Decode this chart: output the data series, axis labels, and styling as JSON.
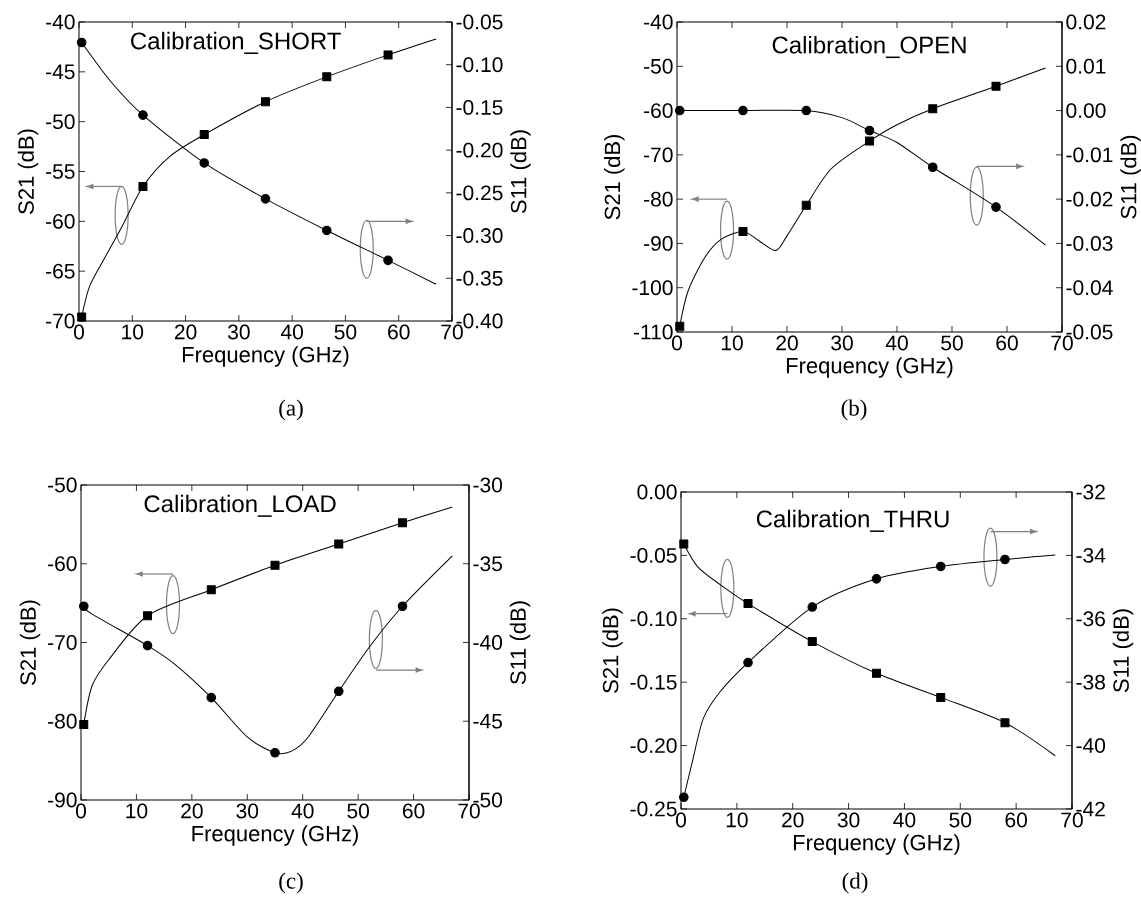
{
  "chart_data": [
    {
      "type": "line",
      "title": "Calibration_SHORT",
      "xlabel": "Frequency (GHz)",
      "ylabel": "S21 (dB)",
      "y2label": "S11 (dB)",
      "annotations": [
        "(a)"
      ],
      "xlim": [
        0,
        70
      ],
      "xticks": [
        0,
        10,
        20,
        30,
        40,
        50,
        60,
        70
      ],
      "ylim": [
        -70,
        -40
      ],
      "yticks": [
        -70,
        -65,
        -60,
        -55,
        -50,
        -45,
        -40
      ],
      "y2lim": [
        -0.4,
        -0.05
      ],
      "y2ticks": [
        {
          "value": -0.4,
          "label": "-0.40"
        },
        {
          "value": -0.35,
          "label": "-0.35"
        },
        {
          "value": -0.3,
          "label": "-0.30"
        },
        {
          "value": -0.25,
          "label": "-0.25"
        },
        {
          "value": -0.2,
          "label": "-0.20"
        },
        {
          "value": -0.15,
          "label": "-0.15"
        },
        {
          "value": -0.1,
          "label": "-0.10"
        },
        {
          "value": -0.05,
          "label": "-0.05"
        }
      ],
      "series": [
        {
          "color": "#000000",
          "marker": "none",
          "x": [
            0.5,
            2,
            5,
            8,
            12,
            17,
            23.5,
            35,
            46.5,
            58,
            67
          ],
          "values": [
            -69.6,
            -66.5,
            -63.5,
            -60.6,
            -56.5,
            -53.5,
            -51.3,
            -48.0,
            -45.5,
            -43.3,
            -41.7
          ]
        },
        {
          "type": "scatter",
          "color": "#000000",
          "marker": "square",
          "x": [
            0.5,
            12,
            23.5,
            35,
            46.5,
            58
          ],
          "values": [
            -69.6,
            -56.5,
            -51.3,
            -48.0,
            -45.5,
            -43.3
          ]
        },
        {
          "axis": "y2",
          "color": "#000000",
          "marker": "none",
          "x": [
            0.5,
            6,
            12,
            23.5,
            35,
            46.5,
            58,
            67
          ],
          "values": [
            -0.074,
            -0.12,
            -0.159,
            -0.215,
            -0.257,
            -0.294,
            -0.329,
            -0.357
          ]
        },
        {
          "type": "scatter",
          "axis": "y2",
          "color": "#000000",
          "marker": "circle",
          "x": [
            0.5,
            12,
            23.5,
            35,
            46.5,
            58
          ],
          "values": [
            -0.074,
            -0.159,
            -0.215,
            -0.257,
            -0.294,
            -0.329
          ]
        }
      ]
    },
    {
      "type": "line",
      "title": "Calibration_OPEN",
      "xlabel": "Frequency (GHz)",
      "ylabel": "S21 (dB)",
      "y2label": "S11 (dB)",
      "annotations": [
        "(b)"
      ],
      "xlim": [
        0,
        70
      ],
      "xticks": [
        0,
        10,
        20,
        30,
        40,
        50,
        60,
        70
      ],
      "ylim": [
        -110,
        -40
      ],
      "yticks": [
        -110,
        -100,
        -90,
        -80,
        -70,
        -60,
        -50,
        -40
      ],
      "y2lim": [
        -0.05,
        0.02
      ],
      "y2ticks": [
        {
          "value": -0.05,
          "label": "-0.05"
        },
        {
          "value": -0.04,
          "label": "-0.04"
        },
        {
          "value": -0.03,
          "label": "-0.03"
        },
        {
          "value": -0.02,
          "label": "-0.02"
        },
        {
          "value": -0.01,
          "label": "-0.01"
        },
        {
          "value": 0,
          "label": "0.00"
        },
        {
          "value": 0.01,
          "label": "0.01"
        },
        {
          "value": 0.02,
          "label": "0.02"
        }
      ],
      "series": [
        {
          "color": "#000000",
          "marker": "none",
          "x": [
            0.5,
            2,
            5,
            8,
            12,
            15,
            18,
            20,
            23.5,
            28,
            35,
            40,
            46.5,
            58,
            67
          ],
          "values": [
            -108.7,
            -100.8,
            -93.3,
            -89.1,
            -87.3,
            -89.5,
            -91.6,
            -88.3,
            -81.4,
            -73.2,
            -66.9,
            -63.2,
            -59.6,
            -54.5,
            -50.4
          ]
        },
        {
          "type": "scatter",
          "color": "#000000",
          "marker": "square",
          "x": [
            0.5,
            12,
            23.5,
            35,
            46.5,
            58
          ],
          "values": [
            -108.7,
            -87.3,
            -81.4,
            -66.9,
            -59.6,
            -54.5
          ]
        },
        {
          "axis": "y2",
          "color": "#000000",
          "marker": "none",
          "x": [
            0.5,
            12,
            23.5,
            30,
            35,
            40,
            46.5,
            58,
            67
          ],
          "values": [
            0.0,
            0.0,
            0.0,
            -0.0016,
            -0.0045,
            -0.0072,
            -0.0128,
            -0.0218,
            -0.0304
          ]
        },
        {
          "type": "scatter",
          "axis": "y2",
          "color": "#000000",
          "marker": "circle",
          "x": [
            0.5,
            12,
            23.5,
            35,
            46.5,
            58
          ],
          "values": [
            0.0,
            0.0,
            0.0,
            -0.0045,
            -0.0128,
            -0.0218
          ]
        }
      ]
    },
    {
      "type": "line",
      "title": "Calibration_LOAD",
      "xlabel": "Frequency (GHz)",
      "ylabel": "S21 (dB)",
      "y2label": "S11 (dB)",
      "annotations": [
        "(c)"
      ],
      "xlim": [
        0,
        70
      ],
      "xticks": [
        0,
        10,
        20,
        30,
        40,
        50,
        60,
        70
      ],
      "ylim": [
        -90,
        -50
      ],
      "yticks": [
        -90,
        -80,
        -70,
        -60,
        -50
      ],
      "y2lim": [
        -50,
        -30
      ],
      "y2ticks": [
        -50,
        -45,
        -40,
        -35,
        -30
      ],
      "series": [
        {
          "color": "#000000",
          "marker": "none",
          "x": [
            0.5,
            2,
            5,
            12,
            23.5,
            35,
            46.5,
            58,
            67
          ],
          "values": [
            -80.4,
            -75.5,
            -72.2,
            -66.6,
            -63.3,
            -60.2,
            -57.5,
            -54.8,
            -52.8
          ]
        },
        {
          "type": "scatter",
          "color": "#000000",
          "marker": "square",
          "x": [
            0.5,
            12,
            23.5,
            35,
            46.5,
            58
          ],
          "values": [
            -80.4,
            -66.6,
            -63.3,
            -60.2,
            -57.5,
            -54.8
          ]
        },
        {
          "axis": "y2",
          "color": "#000000",
          "marker": "none",
          "x": [
            0.5,
            2,
            12,
            17,
            23.5,
            30,
            35,
            38,
            41,
            46.5,
            52,
            58,
            67
          ],
          "values": [
            -37.7,
            -38.2,
            -40.2,
            -41.4,
            -43.5,
            -46.0,
            -47.0,
            -46.9,
            -46.0,
            -43.1,
            -40.3,
            -37.7,
            -34.5
          ]
        },
        {
          "type": "scatter",
          "axis": "y2",
          "color": "#000000",
          "marker": "circle",
          "x": [
            0.5,
            12,
            23.5,
            35,
            46.5,
            58
          ],
          "values": [
            -37.7,
            -40.2,
            -43.5,
            -47.0,
            -43.1,
            -37.7
          ]
        }
      ]
    },
    {
      "type": "line",
      "title": "Calibration_THRU",
      "xlabel": "Frequency (GHz)",
      "ylabel": "S21 (dB)",
      "y2label": "S11 (dB)",
      "annotations": [
        "(d)"
      ],
      "xlim": [
        0,
        70
      ],
      "xticks": [
        0,
        10,
        20,
        30,
        40,
        50,
        60,
        70
      ],
      "ylim": [
        -0.25,
        0
      ],
      "yticks": [
        {
          "value": -0.25,
          "label": "-0.25"
        },
        {
          "value": -0.2,
          "label": "-0.20"
        },
        {
          "value": -0.15,
          "label": "-0.15"
        },
        {
          "value": -0.1,
          "label": "-0.10"
        },
        {
          "value": -0.05,
          "label": "-0.05"
        },
        {
          "value": 0,
          "label": "0.00"
        }
      ],
      "y2lim": [
        -42,
        -32
      ],
      "y2ticks": [
        -42,
        -40,
        -38,
        -36,
        -34,
        -32
      ],
      "series": [
        {
          "color": "#000000",
          "marker": "none",
          "x": [
            0.5,
            3,
            7,
            12,
            23.5,
            35,
            46.5,
            58,
            67
          ],
          "values": [
            -0.041,
            -0.059,
            -0.073,
            -0.088,
            -0.118,
            -0.143,
            -0.162,
            -0.182,
            -0.208
          ]
        },
        {
          "type": "scatter",
          "color": "#000000",
          "marker": "square",
          "x": [
            0.5,
            12,
            23.5,
            35,
            46.5,
            58
          ],
          "values": [
            -0.041,
            -0.088,
            -0.118,
            -0.143,
            -0.162,
            -0.182
          ]
        },
        {
          "axis": "y2",
          "color": "#000000",
          "marker": "none",
          "x": [
            0.5,
            2,
            4,
            7,
            12,
            23.5,
            35,
            46.5,
            58,
            67
          ],
          "values": [
            -41.63,
            -40.53,
            -39.14,
            -38.3,
            -37.38,
            -35.63,
            -34.74,
            -34.35,
            -34.13,
            -33.99
          ]
        },
        {
          "type": "scatter",
          "axis": "y2",
          "color": "#000000",
          "marker": "circle",
          "x": [
            0.5,
            12,
            23.5,
            35,
            46.5,
            58
          ],
          "values": [
            -41.63,
            -37.38,
            -35.63,
            -34.74,
            -34.35,
            -34.13
          ]
        }
      ]
    }
  ]
}
